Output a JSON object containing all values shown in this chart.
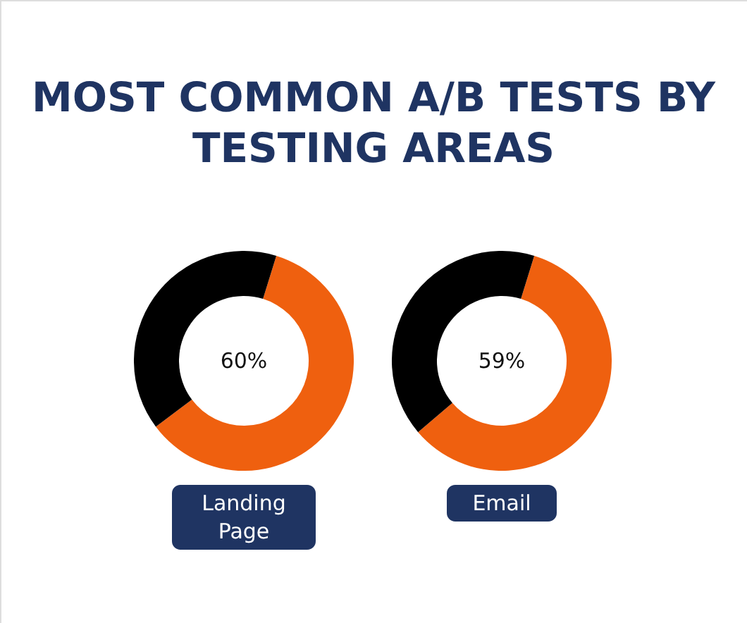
{
  "chart_data": [
    {
      "type": "other",
      "title": "MOST COMMON A/B TESTS BY TESTING AREAS"
    },
    {
      "type": "donut",
      "xlabel": "Landing Page",
      "categories": [
        null,
        null
      ],
      "values": [
        60,
        40
      ],
      "colors": [
        "#ef600f",
        "#000000"
      ],
      "annotations": [
        "60%"
      ]
    },
    {
      "type": "donut",
      "xlabel": "Email",
      "categories": [
        null,
        null
      ],
      "values": [
        59,
        41
      ],
      "colors": [
        "#ef600f",
        "#000000"
      ],
      "annotations": [
        "59%"
      ]
    }
  ]
}
